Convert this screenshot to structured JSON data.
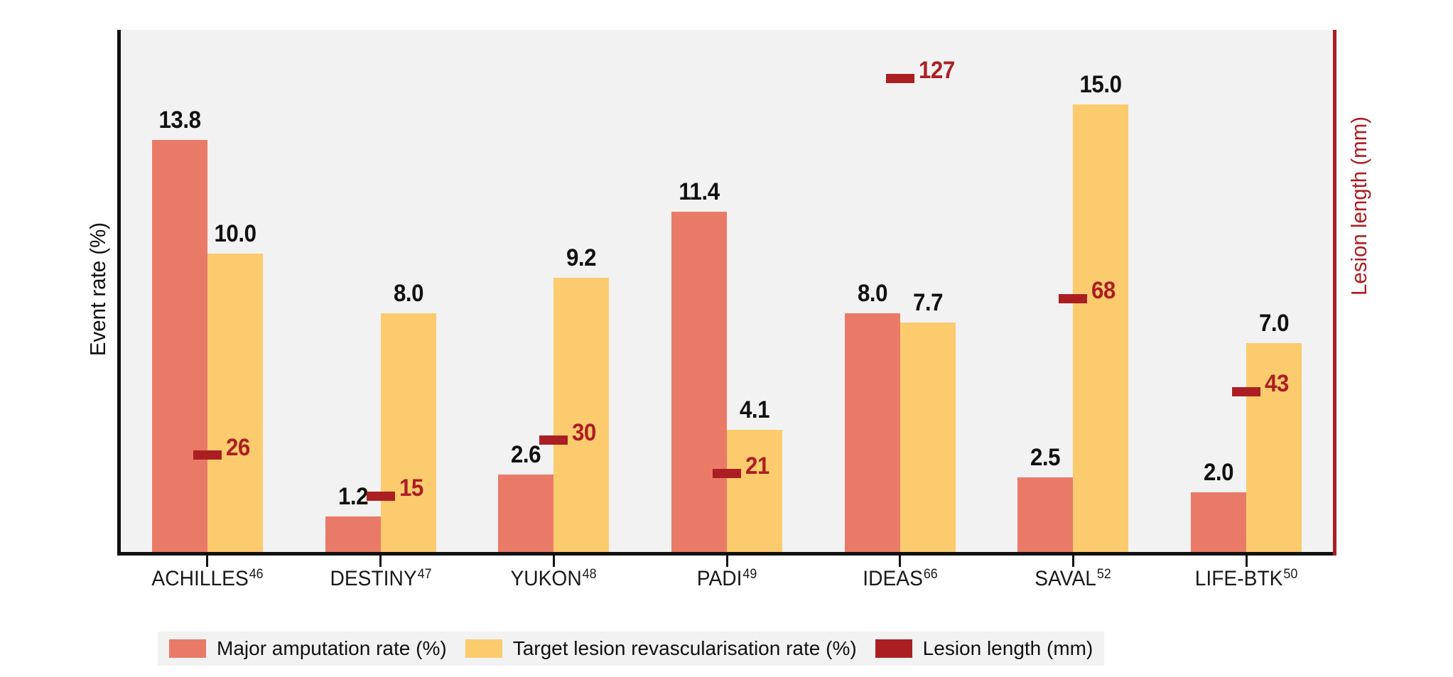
{
  "chart_data": {
    "type": "bar",
    "title": "",
    "categories": [
      "ACHILLES",
      "DESTINY",
      "YUKON",
      "PADI",
      "IDEAS",
      "SAVAL",
      "LIFE-BTK"
    ],
    "category_refs": [
      "46",
      "47",
      "48",
      "49",
      "66",
      "52",
      "50"
    ],
    "series": [
      {
        "name": "Major amputation rate (%)",
        "type": "bar",
        "axis": "left",
        "color": "#ea7a68",
        "values": [
          13.8,
          1.2,
          2.6,
          11.4,
          8.0,
          2.5,
          2.0
        ],
        "labels": [
          "13.8",
          "1.2",
          "2.6",
          "11.4",
          "8.0",
          "2.5",
          "2.0"
        ]
      },
      {
        "name": "Target lesion revascularisation rate (%)",
        "type": "bar",
        "axis": "left",
        "color": "#fbcb6e",
        "values": [
          10.0,
          8.0,
          9.2,
          4.1,
          7.7,
          15.0,
          7.0
        ],
        "labels": [
          "10.0",
          "8.0",
          "9.2",
          "4.1",
          "7.7",
          "15.0",
          "7.0"
        ]
      },
      {
        "name": "Lesion length (mm)",
        "type": "dash-marker",
        "axis": "right",
        "color": "#ab1f23",
        "values": [
          26,
          15,
          30,
          21,
          127,
          68,
          43
        ],
        "labels": [
          "26",
          "15",
          "30",
          "21",
          "127",
          "68",
          "43"
        ]
      }
    ],
    "ylabel_left": "Event rate (%)",
    "ylabel_right": "Lesion length (mm)",
    "ylim_left": [
      0,
      17.5
    ],
    "ylim_right": [
      0,
      140
    ],
    "grid": "off",
    "axes": {
      "left_color": "#111111",
      "bottom_color": "#111111",
      "right_color": "#ab1f23"
    },
    "plot_background": "#f2f2f2",
    "legend": {
      "position": "bottom",
      "background": "#f2f2f2",
      "items": [
        "Major amputation rate (%)",
        "Target lesion revascularisation rate (%)",
        "Lesion length (mm)"
      ]
    }
  }
}
